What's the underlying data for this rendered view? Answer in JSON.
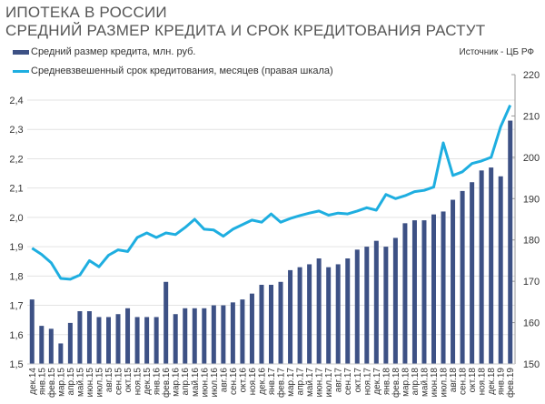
{
  "chart_data": {
    "type": "bar+line",
    "title": "ИПОТЕКА В РОССИИ",
    "subtitle": "СРЕДНИЙ РАЗМЕР КРЕДИТА И СРОК КРЕДИТОВАНИЯ РАСТУТ",
    "source": "Источник  - ЦБ РФ",
    "categories": [
      "дек.14",
      "янв.15",
      "фев.15",
      "мар.15",
      "апр.15",
      "май.15",
      "июн.15",
      "июл.15",
      "авг.15",
      "сен.15",
      "окт.15",
      "ноя.15",
      "дек.15",
      "янв.16",
      "фев.16",
      "мар.16",
      "апр.16",
      "май.16",
      "июн.16",
      "июл.16",
      "авг.16",
      "сен.16",
      "окт.16",
      "ноя.16",
      "дек.16",
      "янв.17",
      "фев.17",
      "мар.17",
      "апр.17",
      "май.17",
      "июн.17",
      "июл.17",
      "авг.17",
      "сен.17",
      "окт.17",
      "ноя.17",
      "дек.17",
      "янв.18",
      "фев.18",
      "мар.18",
      "апр.18",
      "май.18",
      "июн.18",
      "июл.18",
      "авг.18",
      "сен.18",
      "окт.18",
      "ноя.18",
      "дек.18",
      "янв.19",
      "фев.19"
    ],
    "series": [
      {
        "name": "Средний размер кредита, млн. руб.",
        "type": "bar",
        "axis": "left",
        "color": "#3d5185",
        "values": [
          1.72,
          1.63,
          1.62,
          1.57,
          1.64,
          1.68,
          1.68,
          1.66,
          1.66,
          1.67,
          1.69,
          1.66,
          1.66,
          1.66,
          1.78,
          1.67,
          1.69,
          1.69,
          1.69,
          1.7,
          1.7,
          1.71,
          1.72,
          1.74,
          1.77,
          1.77,
          1.78,
          1.82,
          1.83,
          1.84,
          1.86,
          1.83,
          1.84,
          1.86,
          1.89,
          1.9,
          1.92,
          1.9,
          1.93,
          1.98,
          1.99,
          1.99,
          2.01,
          2.02,
          2.06,
          2.09,
          2.12,
          2.16,
          2.17,
          2.14,
          2.33
        ]
      },
      {
        "name": "Средневзвешенный срок кредитования, месяцев (правая шкала)",
        "type": "line",
        "axis": "right",
        "color": "#1eaee0",
        "values": [
          178,
          176.5,
          174.5,
          170.7,
          170.5,
          171.5,
          175,
          173.5,
          176.3,
          177.6,
          177.2,
          180.6,
          181.7,
          180.6,
          181.7,
          181.3,
          183,
          185,
          182.6,
          182.4,
          180.9,
          182.6,
          183.7,
          184.8,
          184.3,
          186.3,
          184.3,
          185.2,
          185.9,
          186.5,
          187,
          186,
          186.5,
          186.3,
          187,
          187.8,
          187.2,
          191,
          190,
          190.7,
          191.7,
          192,
          192.8,
          203.5,
          195.6,
          196.5,
          198.5,
          199.1,
          200,
          207.4,
          212.6
        ]
      }
    ],
    "y_left": {
      "range": [
        1.5,
        2.4
      ],
      "ticks": [
        "1,5",
        "1,6",
        "1,7",
        "1,8",
        "1,9",
        "2,0",
        "2,1",
        "2,2",
        "2,3",
        "2,4"
      ]
    },
    "y_right": {
      "range": [
        150,
        220
      ],
      "ticks": [
        "150",
        "160",
        "170",
        "180",
        "190",
        "200",
        "210",
        "220"
      ]
    },
    "grid": true,
    "legend_placement": "top-left"
  }
}
